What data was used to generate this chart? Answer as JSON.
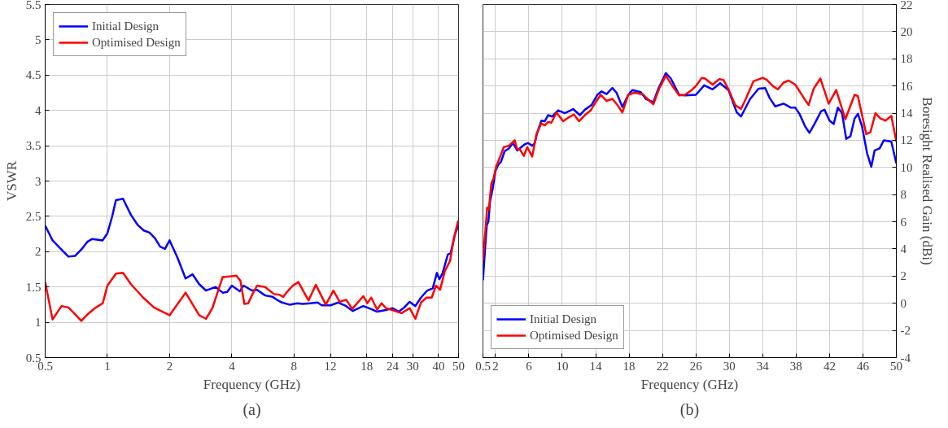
{
  "chart_data": [
    {
      "type": "line",
      "xlabel": "Frequency (GHz)",
      "ylabel": "VSWR",
      "log": "x",
      "grid": true,
      "legend": "top left",
      "annotations": [
        "(a)"
      ],
      "xlim": [
        0.5,
        50
      ],
      "xticks": [
        0.5,
        1,
        2,
        4,
        8,
        12,
        18,
        24,
        30,
        40,
        50
      ],
      "ylim": [
        0.5,
        5.5
      ],
      "yticks": [
        0.5,
        1,
        1.5,
        2,
        2.5,
        3,
        3.5,
        4,
        4.5,
        5,
        5.5
      ],
      "series": [
        {
          "name": "Initial Design",
          "color": "#0000ff",
          "x": [
            0.5,
            0.543,
            0.595,
            0.648,
            0.697,
            0.748,
            0.8,
            0.845,
            0.949,
            1.0,
            1.053,
            1.1,
            1.19,
            1.3,
            1.4,
            1.5,
            1.6,
            1.7,
            1.8,
            1.9,
            2.0,
            2.18,
            2.39,
            2.58,
            2.78,
            3.0,
            3.34,
            3.61,
            3.8,
            4.0,
            4.37,
            4.56,
            5.0,
            5.3,
            5.8,
            6.3,
            6.6,
            7.0,
            7.6,
            8.3,
            8.8,
            9.6,
            10.4,
            10.9,
            12.0,
            13.1,
            14.3,
            15.4,
            17.3,
            18.8,
            20.2,
            22.0,
            24.0,
            25.7,
            27.3,
            29.0,
            30.9,
            32.9,
            35.3,
            37.5,
            39.3,
            40.4,
            41.8,
            44.4,
            45.8,
            48.0,
            50.0
          ],
          "values": [
            2.37,
            2.16,
            2.04,
            1.93,
            1.94,
            2.03,
            2.14,
            2.18,
            2.16,
            2.26,
            2.49,
            2.73,
            2.75,
            2.52,
            2.38,
            2.3,
            2.27,
            2.19,
            2.07,
            2.04,
            2.16,
            1.92,
            1.62,
            1.68,
            1.54,
            1.45,
            1.5,
            1.42,
            1.43,
            1.52,
            1.44,
            1.52,
            1.45,
            1.46,
            1.38,
            1.36,
            1.32,
            1.28,
            1.25,
            1.27,
            1.26,
            1.27,
            1.28,
            1.24,
            1.24,
            1.28,
            1.23,
            1.16,
            1.23,
            1.19,
            1.15,
            1.17,
            1.2,
            1.15,
            1.21,
            1.29,
            1.23,
            1.35,
            1.45,
            1.48,
            1.7,
            1.61,
            1.69,
            1.96,
            1.98,
            2.24,
            2.38
          ]
        },
        {
          "name": "Optimised Design",
          "color": "#ff0000",
          "x": [
            0.5,
            0.543,
            0.6,
            0.648,
            0.69,
            0.748,
            0.8,
            0.87,
            0.95,
            1.0,
            1.1,
            1.19,
            1.3,
            1.49,
            1.68,
            2.0,
            2.39,
            2.78,
            3.0,
            3.22,
            3.61,
            3.91,
            4.2,
            4.4,
            4.6,
            4.8,
            5.0,
            5.3,
            5.8,
            6.4,
            6.8,
            7.1,
            7.4,
            7.9,
            8.4,
            8.8,
            9.4,
            10.2,
            11.4,
            12.4,
            13.3,
            14.3,
            15.3,
            17.3,
            18.1,
            18.9,
            20.2,
            21.2,
            22.3,
            24.1,
            26.5,
            29.0,
            30.9,
            32.9,
            35.0,
            37.1,
            38.9,
            40.7,
            43.0,
            45.5,
            47.5,
            49.8
          ],
          "values": [
            1.57,
            1.04,
            1.23,
            1.21,
            1.13,
            1.02,
            1.11,
            1.2,
            1.27,
            1.52,
            1.69,
            1.7,
            1.54,
            1.35,
            1.21,
            1.1,
            1.42,
            1.1,
            1.05,
            1.2,
            1.64,
            1.65,
            1.66,
            1.59,
            1.26,
            1.27,
            1.38,
            1.52,
            1.5,
            1.4,
            1.39,
            1.36,
            1.43,
            1.52,
            1.57,
            1.46,
            1.31,
            1.53,
            1.25,
            1.45,
            1.29,
            1.32,
            1.19,
            1.37,
            1.27,
            1.35,
            1.18,
            1.27,
            1.2,
            1.17,
            1.13,
            1.2,
            1.05,
            1.28,
            1.35,
            1.35,
            1.52,
            1.46,
            1.73,
            1.87,
            2.19,
            2.44
          ]
        }
      ]
    },
    {
      "type": "line",
      "xlabel": "Frequency (GHz)",
      "y2label": "Boresight Realised Gain (dBi)",
      "grid": true,
      "legend": "bottom left",
      "annotations": [
        "(b)"
      ],
      "xlim": [
        0.5,
        50
      ],
      "xticks": [
        0.5,
        2,
        6,
        10,
        14,
        18,
        22,
        26,
        30,
        34,
        38,
        42,
        46,
        50
      ],
      "y2lim": [
        -4,
        22
      ],
      "y2ticks": [
        -4,
        -2,
        0,
        2,
        4,
        6,
        8,
        10,
        12,
        14,
        16,
        18,
        20,
        22
      ],
      "series": [
        {
          "name": "Initial Design",
          "color": "#0000ff",
          "axis": "y2",
          "x": [
            0.5,
            0.76,
            0.96,
            1.15,
            1.35,
            1.67,
            2.0,
            2.33,
            2.65,
            3.1,
            3.6,
            4.1,
            4.6,
            5.1,
            5.5,
            5.9,
            6.4,
            6.7,
            7.0,
            7.5,
            7.9,
            8.3,
            8.8,
            9.5,
            10.3,
            11.3,
            12.1,
            12.7,
            13.5,
            14.2,
            14.7,
            15.3,
            16.0,
            16.5,
            17.2,
            17.9,
            18.4,
            19.4,
            20.0,
            20.9,
            21.5,
            22.4,
            23.0,
            24.0,
            24.7,
            26.0,
            27.0,
            28.0,
            28.9,
            29.9,
            30.9,
            31.4,
            32.5,
            33.5,
            34.3,
            34.8,
            35.5,
            36.5,
            37.4,
            37.9,
            38.4,
            39.1,
            39.6,
            40.2,
            41.0,
            41.4,
            42.0,
            42.5,
            43.0,
            43.5,
            44.0,
            44.5,
            45.0,
            45.4,
            45.9,
            46.5,
            47.0,
            47.4,
            48.0,
            48.5,
            49.4,
            50.0
          ],
          "values": [
            1.7,
            4.1,
            5.75,
            6.0,
            7.5,
            8.45,
            9.75,
            10.2,
            10.4,
            11.2,
            11.4,
            11.8,
            11.25,
            11.5,
            11.7,
            11.8,
            11.6,
            11.8,
            12.55,
            13.45,
            13.4,
            13.85,
            13.75,
            14.2,
            14.0,
            14.3,
            13.85,
            14.25,
            14.6,
            15.35,
            15.6,
            15.4,
            15.85,
            15.5,
            14.45,
            15.35,
            15.7,
            15.55,
            15.05,
            14.8,
            15.8,
            16.95,
            16.55,
            15.35,
            15.3,
            15.35,
            16.05,
            15.75,
            16.2,
            15.7,
            14.05,
            13.75,
            15.05,
            15.8,
            15.85,
            15.15,
            14.5,
            14.7,
            14.4,
            14.4,
            13.95,
            13.0,
            12.55,
            13.2,
            14.15,
            14.25,
            13.45,
            13.2,
            14.4,
            14.0,
            12.1,
            12.3,
            13.6,
            13.95,
            13.0,
            11.05,
            10.05,
            11.25,
            11.4,
            12.0,
            11.9,
            10.3
          ]
        },
        {
          "name": "Optimised Design",
          "color": "#ff0000",
          "axis": "y2",
          "x": [
            0.5,
            0.86,
            1.0,
            1.2,
            1.5,
            1.77,
            2.07,
            2.5,
            3.0,
            3.6,
            4.3,
            4.6,
            4.9,
            5.4,
            5.8,
            6.4,
            6.9,
            7.5,
            7.9,
            8.3,
            8.7,
            9.3,
            10.1,
            10.8,
            11.4,
            12.0,
            12.7,
            13.4,
            14.0,
            14.6,
            15.3,
            16.0,
            16.6,
            17.2,
            17.9,
            18.6,
            19.6,
            20.2,
            20.9,
            21.6,
            22.4,
            23.3,
            24.0,
            24.7,
            25.5,
            26.0,
            26.7,
            27.1,
            28.0,
            28.8,
            29.3,
            29.9,
            30.7,
            31.4,
            31.9,
            32.9,
            34.0,
            34.5,
            35.2,
            35.8,
            36.5,
            37.1,
            37.9,
            39.1,
            39.5,
            40.1,
            40.9,
            41.9,
            42.8,
            43.9,
            45.0,
            45.4,
            46.4,
            46.9,
            47.5,
            48.1,
            48.7,
            49.4,
            50.0
          ],
          "values": [
            3.15,
            5.85,
            7.05,
            6.9,
            8.8,
            9.2,
            10.05,
            10.7,
            11.5,
            11.6,
            12.0,
            11.35,
            11.35,
            10.85,
            11.5,
            10.8,
            12.45,
            13.25,
            13.1,
            13.35,
            13.3,
            14.05,
            13.4,
            13.7,
            13.9,
            13.4,
            13.85,
            14.2,
            14.8,
            15.35,
            14.9,
            15.05,
            14.6,
            14.05,
            15.35,
            15.5,
            15.4,
            15.05,
            14.65,
            15.8,
            16.75,
            15.9,
            15.3,
            15.35,
            15.7,
            16.0,
            16.6,
            16.55,
            16.1,
            16.5,
            16.45,
            15.75,
            14.6,
            14.3,
            14.95,
            16.35,
            16.6,
            16.45,
            16.0,
            15.75,
            16.25,
            16.4,
            16.1,
            14.95,
            14.6,
            15.8,
            16.55,
            14.7,
            15.7,
            13.55,
            15.35,
            15.25,
            12.45,
            12.6,
            14.0,
            13.6,
            13.45,
            13.8,
            11.9
          ]
        }
      ]
    }
  ]
}
